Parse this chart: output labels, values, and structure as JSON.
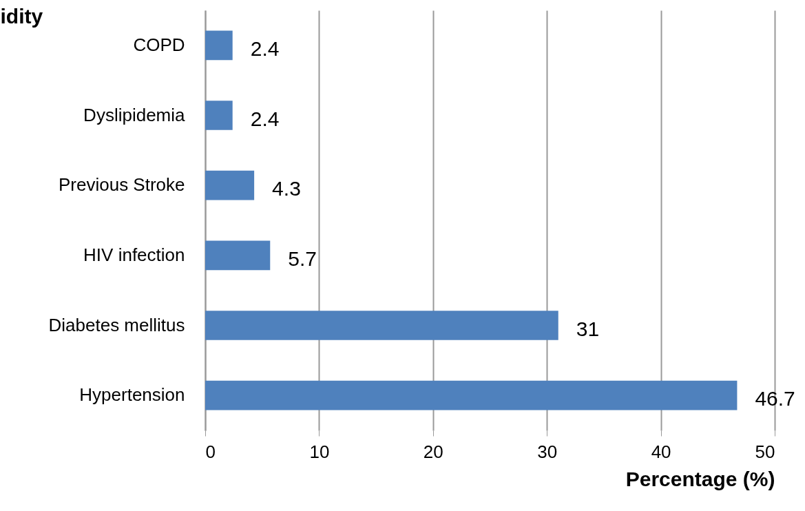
{
  "chart_data": {
    "type": "bar",
    "orientation": "horizontal",
    "ylabel": "idity",
    "xlabel": "Percentage (%)",
    "categories": [
      "COPD",
      "Dyslipidemia",
      "Previous Stroke",
      "HIV infection",
      "Diabetes mellitus",
      "Hypertension"
    ],
    "values": [
      2.4,
      2.4,
      4.3,
      5.7,
      31,
      46.7
    ],
    "color": "#4f81bd",
    "xlim": [
      0,
      50
    ],
    "xticks": [
      0,
      10,
      20,
      30,
      40,
      50
    ],
    "grid": "x",
    "data_labels": true
  }
}
